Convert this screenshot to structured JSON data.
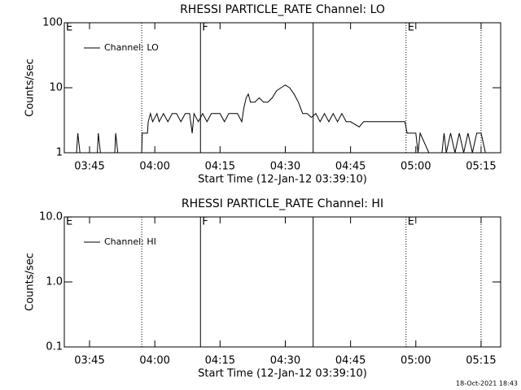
{
  "chart_data": [
    {
      "type": "line",
      "title": "RHESSI PARTICLE_RATE Channel: LO",
      "xlabel": "Start Time (12-Jan-12 03:39:10)",
      "ylabel": "Counts/sec",
      "log_y": true,
      "legend": "upper left",
      "xlim": [
        219.2,
        319.5
      ],
      "xticks": [
        {
          "value": 225,
          "label": "03:45"
        },
        {
          "value": 240,
          "label": "04:00"
        },
        {
          "value": 255,
          "label": "04:15"
        },
        {
          "value": 270,
          "label": "04:30"
        },
        {
          "value": 285,
          "label": "04:45"
        },
        {
          "value": 300,
          "label": "05:00"
        },
        {
          "value": 315,
          "label": "05:15"
        }
      ],
      "ylim": [
        1,
        100
      ],
      "yticks": [
        1,
        10,
        100
      ],
      "annotations": [
        {
          "x": 219.2,
          "style": "dotted",
          "label": "E"
        },
        {
          "x": 237,
          "style": "dotted"
        },
        {
          "x": 250.5,
          "style": "solid",
          "label": "F"
        },
        {
          "x": 276.4,
          "style": "solid"
        },
        {
          "x": 297.75,
          "style": "dotted",
          "label": "E"
        },
        {
          "x": 315,
          "style": "dotted"
        }
      ],
      "series": [
        {
          "name": "Channel: LO",
          "color": "#000000",
          "x": [
            219.2,
            222,
            222.3,
            222.8,
            226.8,
            227,
            227.5,
            230.8,
            231,
            231.5,
            237,
            237.1,
            238.3,
            238.5,
            239,
            239.5,
            240.5,
            241,
            242,
            243,
            244,
            245,
            246,
            247,
            248,
            248.6,
            249,
            250,
            251,
            252,
            253,
            255,
            256,
            257,
            259,
            260,
            260.5,
            261,
            261.5,
            262,
            263,
            264,
            265,
            266,
            267,
            268,
            269,
            270,
            271,
            272,
            273,
            274,
            275,
            276,
            277,
            278,
            279,
            280,
            281,
            282,
            283,
            284,
            285,
            287,
            288,
            289,
            291,
            293,
            295,
            297.5,
            298,
            299,
            300,
            300.5,
            301,
            303,
            306,
            306.5,
            307,
            308,
            309,
            310,
            311,
            312,
            313,
            314,
            315,
            316
          ],
          "values": [
            1,
            1,
            2,
            1,
            1,
            2,
            1,
            1,
            2,
            1,
            1,
            2,
            2,
            3,
            4,
            3,
            4,
            3,
            4,
            3,
            4,
            4,
            3,
            4,
            4,
            2,
            4,
            3,
            4,
            3,
            4,
            4,
            3,
            4,
            4,
            3,
            5,
            7,
            8,
            6,
            6,
            7,
            6,
            6,
            7,
            9,
            10,
            11,
            10,
            8,
            6,
            4,
            4,
            3.5,
            4,
            3,
            4,
            3,
            4,
            3,
            4,
            3,
            3,
            2.5,
            3,
            3,
            3,
            3,
            3,
            3,
            2,
            2,
            2,
            1,
            2,
            1,
            1,
            2,
            1,
            2,
            1,
            2,
            1,
            2,
            1,
            2,
            2,
            1
          ]
        }
      ]
    },
    {
      "type": "line",
      "title": "RHESSI PARTICLE_RATE Channel: HI",
      "xlabel": "Start Time (12-Jan-12 03:39:10)",
      "ylabel": "Counts/sec",
      "log_y": true,
      "legend": "upper left",
      "xlim": [
        219.2,
        319.5
      ],
      "xticks": [
        {
          "value": 225,
          "label": "03:45"
        },
        {
          "value": 240,
          "label": "04:00"
        },
        {
          "value": 255,
          "label": "04:15"
        },
        {
          "value": 270,
          "label": "04:30"
        },
        {
          "value": 285,
          "label": "04:45"
        },
        {
          "value": 300,
          "label": "05:00"
        },
        {
          "value": 315,
          "label": "05:15"
        }
      ],
      "ylim": [
        0.1,
        10
      ],
      "yticks": [
        0.1,
        {
          "value": 1,
          "label": "1.0"
        },
        {
          "value": 10,
          "label": "10.0"
        }
      ],
      "annotations": [
        {
          "x": 219.2,
          "style": "dotted",
          "label": "E"
        },
        {
          "x": 237,
          "style": "dotted"
        },
        {
          "x": 250.5,
          "style": "solid",
          "label": "F"
        },
        {
          "x": 276.4,
          "style": "solid"
        },
        {
          "x": 297.75,
          "style": "dotted",
          "label": "E"
        },
        {
          "x": 315,
          "style": "dotted"
        }
      ],
      "series": [
        {
          "name": "Channel: HI",
          "color": "#000000",
          "x": [],
          "values": []
        }
      ]
    }
  ],
  "footer": "18-Oct-2021 18:43"
}
